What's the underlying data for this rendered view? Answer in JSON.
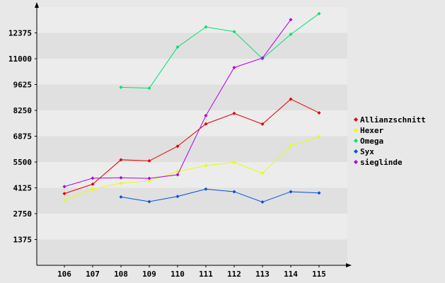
{
  "chart_data": {
    "type": "line",
    "title": "",
    "xlabel": "",
    "ylabel": "",
    "categories": [
      "106",
      "107",
      "108",
      "109",
      "110",
      "111",
      "112",
      "113",
      "114",
      "115"
    ],
    "y_ticks": [
      1375,
      2750,
      4125,
      5500,
      6875,
      8250,
      9625,
      11000,
      12375
    ],
    "ylim": [
      0,
      13750
    ],
    "grid": "alternating horizontal bands",
    "legend_position": "right",
    "series": [
      {
        "name": "Allianzschnitt",
        "color": "#e00000",
        "values": [
          3820,
          4320,
          5620,
          5560,
          6340,
          7530,
          8090,
          7520,
          8850,
          8120
        ]
      },
      {
        "name": "Hexer",
        "color": "#e6ff00",
        "values": [
          3460,
          4050,
          4370,
          4490,
          5000,
          5310,
          5480,
          4900,
          6370,
          6840
        ]
      },
      {
        "name": "Omega",
        "color": "#00e070",
        "values": [
          null,
          null,
          9480,
          9430,
          11620,
          12690,
          12440,
          11000,
          12300,
          13400
        ]
      },
      {
        "name": "Syx",
        "color": "#0050e0",
        "values": [
          null,
          null,
          3640,
          3390,
          3670,
          4060,
          3920,
          3370,
          3920,
          3850
        ]
      },
      {
        "name": "sieglinde",
        "color": "#b000e0",
        "values": [
          4190,
          4640,
          4660,
          4630,
          4820,
          7970,
          10530,
          11040,
          13080,
          null
        ]
      }
    ]
  }
}
